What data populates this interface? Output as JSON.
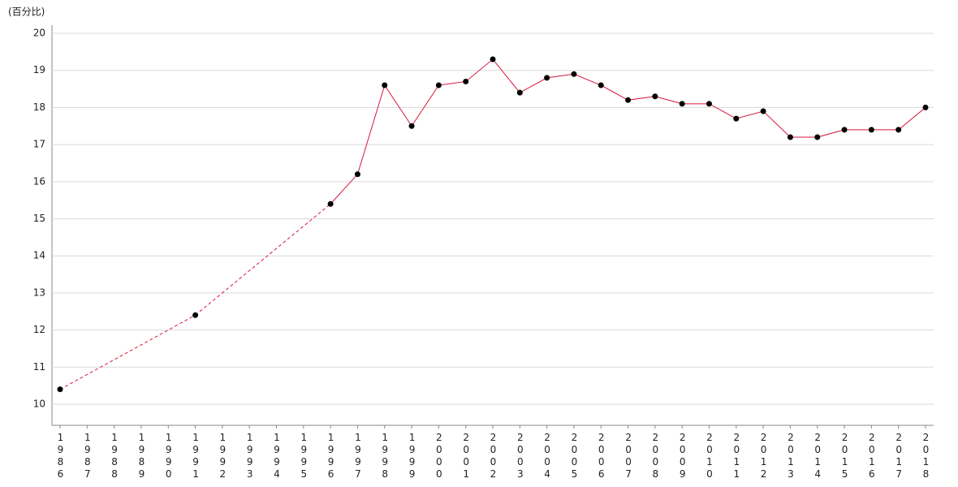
{
  "chart_data": {
    "type": "line",
    "y_label": "(百分比)",
    "categories": [
      "1986",
      "1987",
      "1988",
      "1989",
      "1990",
      "1991",
      "1992",
      "1993",
      "1994",
      "1995",
      "1996",
      "1997",
      "1998",
      "1999",
      "2000",
      "2001",
      "2002",
      "2003",
      "2004",
      "2005",
      "2006",
      "2007",
      "2008",
      "2009",
      "2010",
      "2011",
      "2012",
      "2013",
      "2014",
      "2015",
      "2016",
      "2017",
      "2018"
    ],
    "series": [
      {
        "color": "#d8163c",
        "marker_color": "#000000",
        "values": [
          10.4,
          null,
          null,
          null,
          null,
          12.4,
          null,
          null,
          null,
          null,
          15.4,
          16.2,
          18.6,
          17.5,
          18.6,
          18.7,
          19.3,
          18.4,
          18.8,
          18.9,
          18.6,
          18.2,
          18.3,
          18.1,
          18.1,
          17.7,
          17.9,
          17.2,
          17.2,
          17.4,
          17.4,
          17.4,
          18.0
        ]
      }
    ],
    "ylim": [
      9.43,
      20.22
    ],
    "yticks": [
      10,
      11,
      12,
      13,
      14,
      15,
      16,
      17,
      18,
      19,
      20
    ],
    "grid": true
  }
}
